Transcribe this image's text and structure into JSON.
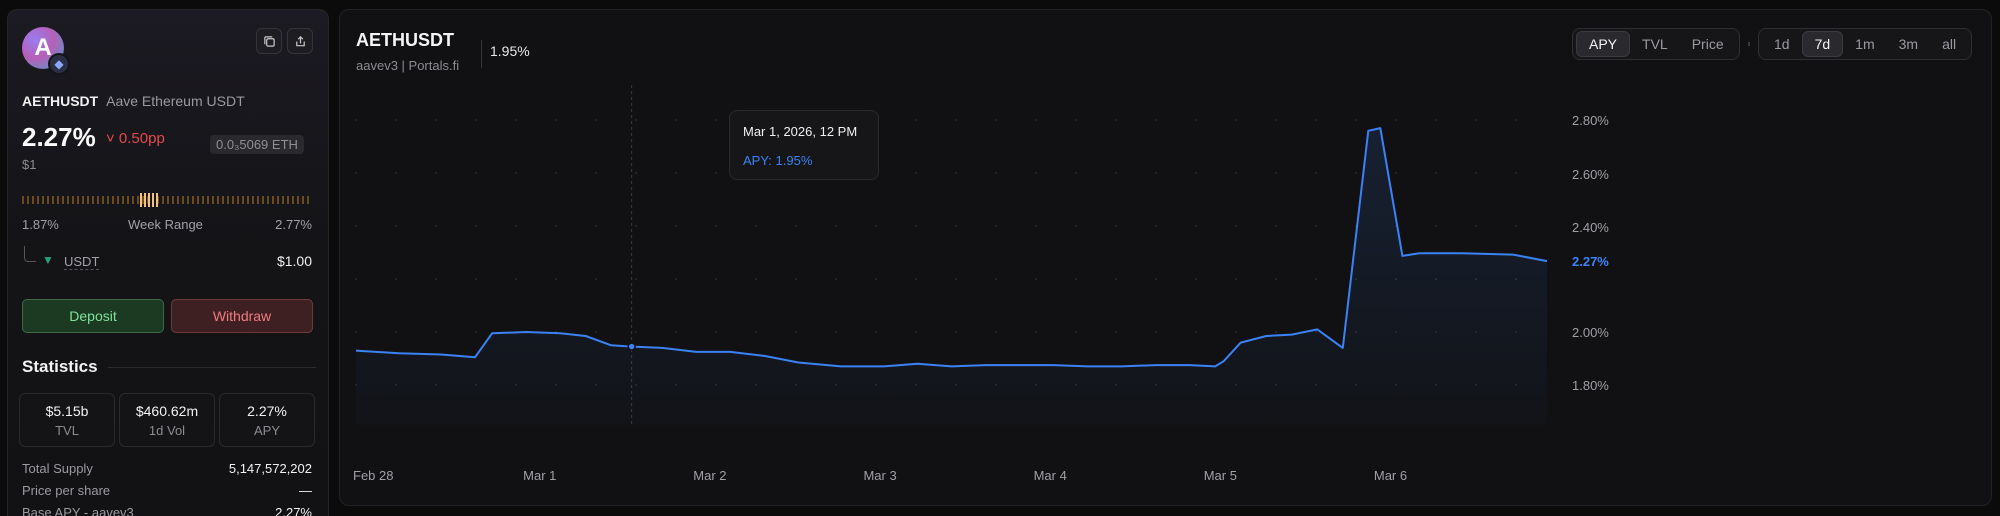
{
  "token": {
    "logo_letter": "A",
    "chain_icon": "ethereum-icon",
    "symbol": "AETHUSDT",
    "full_name": "Aave Ethereum USDT",
    "apy": "2.27%",
    "apy_change": "˅ 0.50pp",
    "price": "$1",
    "eth_price": "0.0₃5069 ETH"
  },
  "week_range": {
    "low": "1.87%",
    "label": "Week Range",
    "high": "2.77%",
    "current_fraction": 0.44
  },
  "underlying": {
    "icon": "tether-icon",
    "label": "USDT",
    "value": "$1.00"
  },
  "actions": {
    "deposit": "Deposit",
    "withdraw": "Withdraw"
  },
  "statistics": {
    "title": "Statistics",
    "boxes": [
      {
        "value": "$5.15b",
        "label": "TVL"
      },
      {
        "value": "$460.62m",
        "label": "1d Vol"
      },
      {
        "value": "2.27%",
        "label": "APY"
      }
    ],
    "rows": [
      {
        "key": "Total Supply",
        "value": "5,147,572,202"
      },
      {
        "key": "Price per share",
        "value": "—"
      },
      {
        "key": "Base APY - aavev3",
        "value": "2.27%"
      }
    ]
  },
  "chart_header": {
    "pair": "AETHUSDT",
    "subtitle": "aavev3 | Portals.fi",
    "current_value": "1.95%"
  },
  "metric_toggle": {
    "options": [
      "APY",
      "TVL",
      "Price"
    ],
    "selected": "APY"
  },
  "range_toggle": {
    "options": [
      "1d",
      "7d",
      "1m",
      "3m",
      "all"
    ],
    "selected": "7d"
  },
  "tooltip": {
    "date": "Mar 1, 2026, 12 PM",
    "value": "APY: 1.95%"
  },
  "colors": {
    "line": "#3b82f6",
    "negative": "#e5484d",
    "deposit": "#7ee29a",
    "withdraw": "#f07b80"
  },
  "chart_data": {
    "type": "area",
    "y_unit": "%",
    "y_ticks": [
      "1.80%",
      "2.00%",
      "2.40%",
      "2.60%",
      "2.80%"
    ],
    "y_tick_values": [
      1.8,
      2.0,
      2.4,
      2.6,
      2.8
    ],
    "current_label": "2.27%",
    "current_value": 2.27,
    "x_ticks": [
      "Feb 28",
      "Mar 1",
      "Mar 2",
      "Mar 3",
      "Mar 4",
      "Mar 5",
      "Mar 6"
    ],
    "x_range": [
      -0.1,
      6.9
    ],
    "hover_x": 1.52,
    "series": [
      {
        "points": [
          [
            -0.1,
            1.93
          ],
          [
            0.15,
            1.92
          ],
          [
            0.4,
            1.915
          ],
          [
            0.6,
            1.905
          ],
          [
            0.7,
            1.995
          ],
          [
            0.9,
            2.0
          ],
          [
            1.1,
            1.995
          ],
          [
            1.25,
            1.985
          ],
          [
            1.4,
            1.95
          ],
          [
            1.52,
            1.945
          ],
          [
            1.7,
            1.94
          ],
          [
            1.9,
            1.925
          ],
          [
            2.1,
            1.925
          ],
          [
            2.3,
            1.91
          ],
          [
            2.5,
            1.885
          ],
          [
            2.75,
            1.87
          ],
          [
            3.0,
            1.87
          ],
          [
            3.2,
            1.88
          ],
          [
            3.4,
            1.87
          ],
          [
            3.6,
            1.875
          ],
          [
            3.8,
            1.875
          ],
          [
            4.0,
            1.875
          ],
          [
            4.2,
            1.87
          ],
          [
            4.4,
            1.87
          ],
          [
            4.6,
            1.875
          ],
          [
            4.8,
            1.875
          ],
          [
            4.95,
            1.87
          ],
          [
            5.0,
            1.89
          ],
          [
            5.1,
            1.96
          ],
          [
            5.25,
            1.985
          ],
          [
            5.4,
            1.99
          ],
          [
            5.55,
            2.01
          ],
          [
            5.7,
            1.94
          ],
          [
            5.85,
            2.76
          ],
          [
            5.92,
            2.77
          ],
          [
            6.05,
            2.29
          ],
          [
            6.15,
            2.3
          ],
          [
            6.4,
            2.3
          ],
          [
            6.7,
            2.295
          ],
          [
            6.9,
            2.27
          ]
        ]
      }
    ]
  }
}
